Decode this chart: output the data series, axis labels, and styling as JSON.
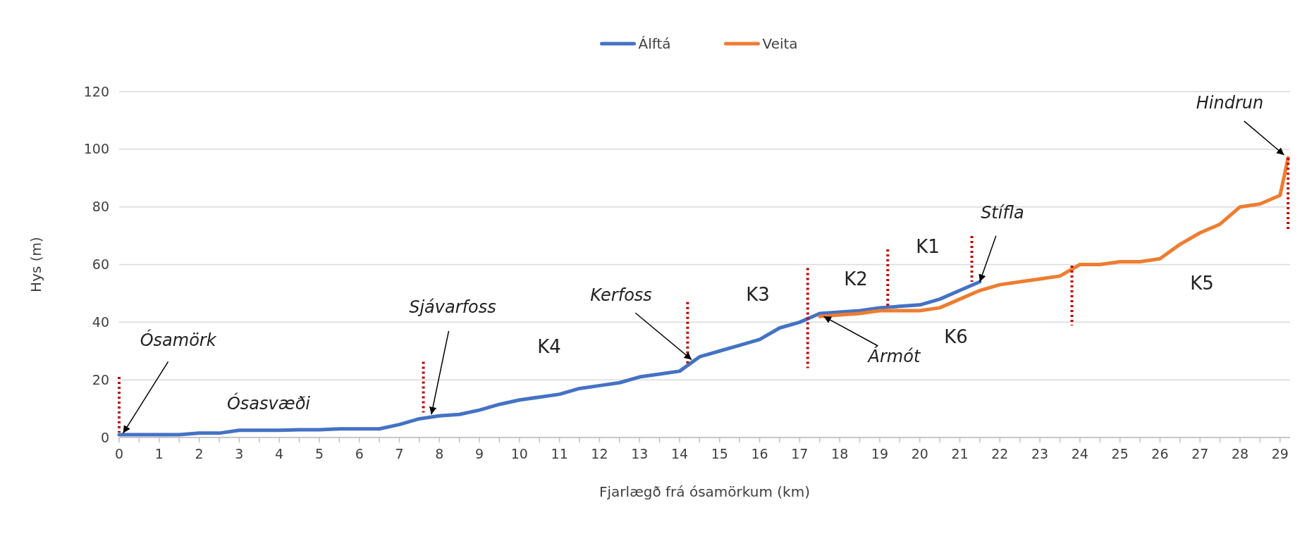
{
  "chart_data": {
    "type": "line",
    "xlabel": "Fjarlægð frá ósamörkum (km)",
    "ylabel": "Hys (m)",
    "xlim": [
      0,
      29.25
    ],
    "xticks": [
      0,
      {
        "value": 0.5,
        "label": null
      },
      1,
      {
        "value": 1.5,
        "label": null
      },
      2,
      {
        "value": 2.5,
        "label": null
      },
      3,
      {
        "value": 3.5,
        "label": null
      },
      4,
      {
        "value": 4.5,
        "label": null
      },
      5,
      {
        "value": 5.5,
        "label": null
      },
      6,
      {
        "value": 6.5,
        "label": null
      },
      7,
      {
        "value": 7.5,
        "label": null
      },
      8,
      {
        "value": 8.5,
        "label": null
      },
      9,
      {
        "value": 9.5,
        "label": null
      },
      10,
      {
        "value": 10.5,
        "label": null
      },
      11,
      {
        "value": 11.5,
        "label": null
      },
      12,
      {
        "value": 12.5,
        "label": null
      },
      13,
      {
        "value": 13.5,
        "label": null
      },
      14,
      {
        "value": 14.5,
        "label": null
      },
      15,
      {
        "value": 15.5,
        "label": null
      },
      16,
      {
        "value": 16.5,
        "label": null
      },
      17,
      {
        "value": 17.5,
        "label": null
      },
      18,
      {
        "value": 18.5,
        "label": null
      },
      19,
      {
        "value": 19.5,
        "label": null
      },
      20,
      {
        "value": 20.5,
        "label": null
      },
      21,
      {
        "value": 21.5,
        "label": null
      },
      22,
      {
        "value": 22.5,
        "label": null
      },
      23,
      {
        "value": 23.5,
        "label": null
      },
      24,
      {
        "value": 24.5,
        "label": null
      },
      25,
      {
        "value": 25.5,
        "label": null
      },
      26,
      {
        "value": 26.5,
        "label": null
      },
      27,
      {
        "value": 27.5,
        "label": null
      },
      28,
      {
        "value": 28.5,
        "label": null
      },
      29
    ],
    "ylim": [
      0,
      120
    ],
    "yticks": [
      0,
      20,
      40,
      60,
      80,
      100,
      120
    ],
    "grid": "y",
    "legend": "top",
    "line_style": "solid",
    "marker": "none",
    "series": [
      {
        "name": "Álftá",
        "color": "#4472c4",
        "x": [
          0,
          0.5,
          1,
          1.5,
          2,
          2.5,
          3,
          3.5,
          4,
          4.5,
          5,
          5.5,
          6,
          6.5,
          7,
          7.5,
          8,
          8.5,
          9,
          9.5,
          10,
          10.5,
          11,
          11.5,
          12,
          12.5,
          13,
          13.5,
          14,
          14.5,
          15,
          15.5,
          16,
          16.5,
          17,
          17.5,
          18,
          18.5,
          19,
          19.5,
          20,
          20.5,
          21,
          21.5
        ],
        "values": [
          1,
          1,
          1,
          1,
          1.5,
          1.5,
          2.5,
          2.5,
          2.5,
          2.7,
          2.7,
          3,
          3,
          3,
          4.5,
          6.5,
          7.5,
          8,
          9.5,
          11.5,
          13,
          14,
          15,
          17,
          18,
          19,
          21,
          22,
          23,
          28,
          30,
          32,
          34,
          38,
          40,
          43,
          43.5,
          44,
          45,
          45.5,
          46,
          48,
          51,
          54
        ]
      },
      {
        "name": "Veita",
        "color": "#ed7d31",
        "x": [
          17.5,
          18,
          18.5,
          19,
          19.5,
          20,
          20.5,
          21,
          21.5,
          22,
          22.5,
          23,
          23.5,
          24,
          24.5,
          25,
          25.5,
          26,
          26.5,
          27,
          27.5,
          28,
          28.5,
          29,
          29.2
        ],
        "values": [
          42,
          42.5,
          43,
          44,
          44,
          44,
          45,
          48,
          51,
          53,
          54,
          55,
          56,
          60,
          60,
          61,
          61,
          62,
          67,
          71,
          74,
          80,
          81,
          84,
          97
        ]
      }
    ],
    "ref_lines": [
      {
        "axis": "x",
        "value": 0,
        "color": "#c00000",
        "line_style": "dotted"
      },
      {
        "axis": "x",
        "value": 7.6,
        "color": "#c00000",
        "line_style": "dotted"
      },
      {
        "axis": "x",
        "value": 14.2,
        "color": "#c00000",
        "line_style": "dotted"
      },
      {
        "axis": "x",
        "value": 17.2,
        "color": "#c00000",
        "line_style": "dotted"
      },
      {
        "axis": "x",
        "value": 19.2,
        "color": "#c00000",
        "line_style": "dotted"
      },
      {
        "axis": "x",
        "value": 21.3,
        "color": "#c00000",
        "line_style": "dotted"
      },
      {
        "axis": "x",
        "value": 23.8,
        "color": "#c00000",
        "line_style": "dotted"
      },
      {
        "axis": "x",
        "value": 29.2,
        "color": "#c00000",
        "line_style": "dotted"
      }
    ],
    "annotations": [
      {
        "text": "Ósamörk",
        "x": 0.1,
        "y": 1.5
      },
      {
        "text": "Sjávarfoss",
        "x": 7.8,
        "y": 8
      },
      {
        "text": "Kerfoss",
        "x": 14.3,
        "y": 27
      },
      {
        "text": "Ármót",
        "x": 17.6,
        "y": 42
      },
      {
        "text": "Stífla",
        "x": 21.5,
        "y": 54
      },
      {
        "text": "Hindrun",
        "x": 29.1,
        "y": 98
      },
      "Ósasvæði",
      "K4",
      "K3",
      "K2",
      "K1",
      "K6",
      "K5"
    ]
  }
}
